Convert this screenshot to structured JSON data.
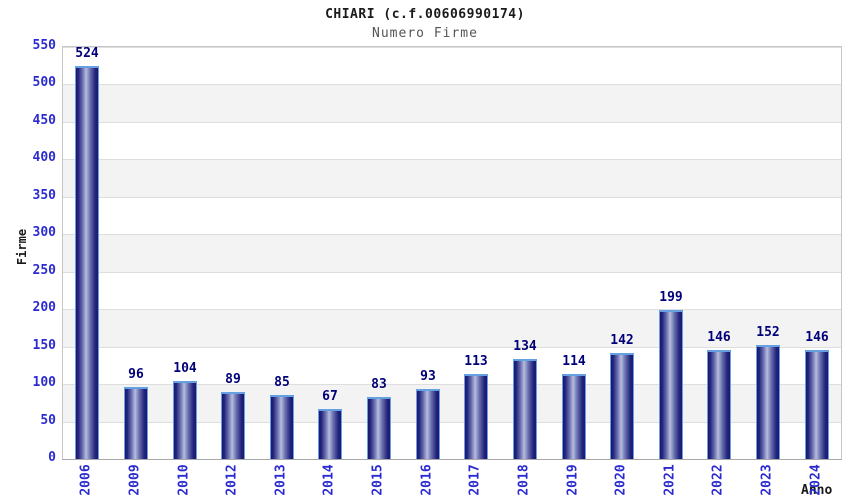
{
  "chart_data": {
    "type": "bar",
    "title": "CHIARI (c.f.00606990174)",
    "subtitle": "Numero Firme",
    "xlabel": "Anno",
    "ylabel": "Firme",
    "categories": [
      "2006",
      "2009",
      "2010",
      "2012",
      "2013",
      "2014",
      "2015",
      "2016",
      "2017",
      "2018",
      "2019",
      "2020",
      "2021",
      "2022",
      "2023",
      "2024"
    ],
    "values": [
      524,
      96,
      104,
      89,
      85,
      67,
      83,
      93,
      113,
      134,
      114,
      142,
      199,
      146,
      152,
      146
    ],
    "ylim": [
      0,
      550
    ],
    "ytick_step": 50,
    "yticks": [
      0,
      50,
      100,
      150,
      200,
      250,
      300,
      350,
      400,
      450,
      500,
      550
    ],
    "legend": "none",
    "grid": "horizontal gridlines every 50 with alternating white/gray bands",
    "colors": {
      "bar_dark": "#191970",
      "bar_light": "#b7bcdd",
      "bar_outline": "#64a0e2",
      "value_label": "#000078",
      "axis_tick_label": "#2b2bd0",
      "band_gray": "#f3f3f3",
      "gridline": "#dedede",
      "plot_border": "#c6c6c6",
      "title_color": "#1a1a1a",
      "subtitle_color": "#555555",
      "background": "#ffffff"
    }
  }
}
